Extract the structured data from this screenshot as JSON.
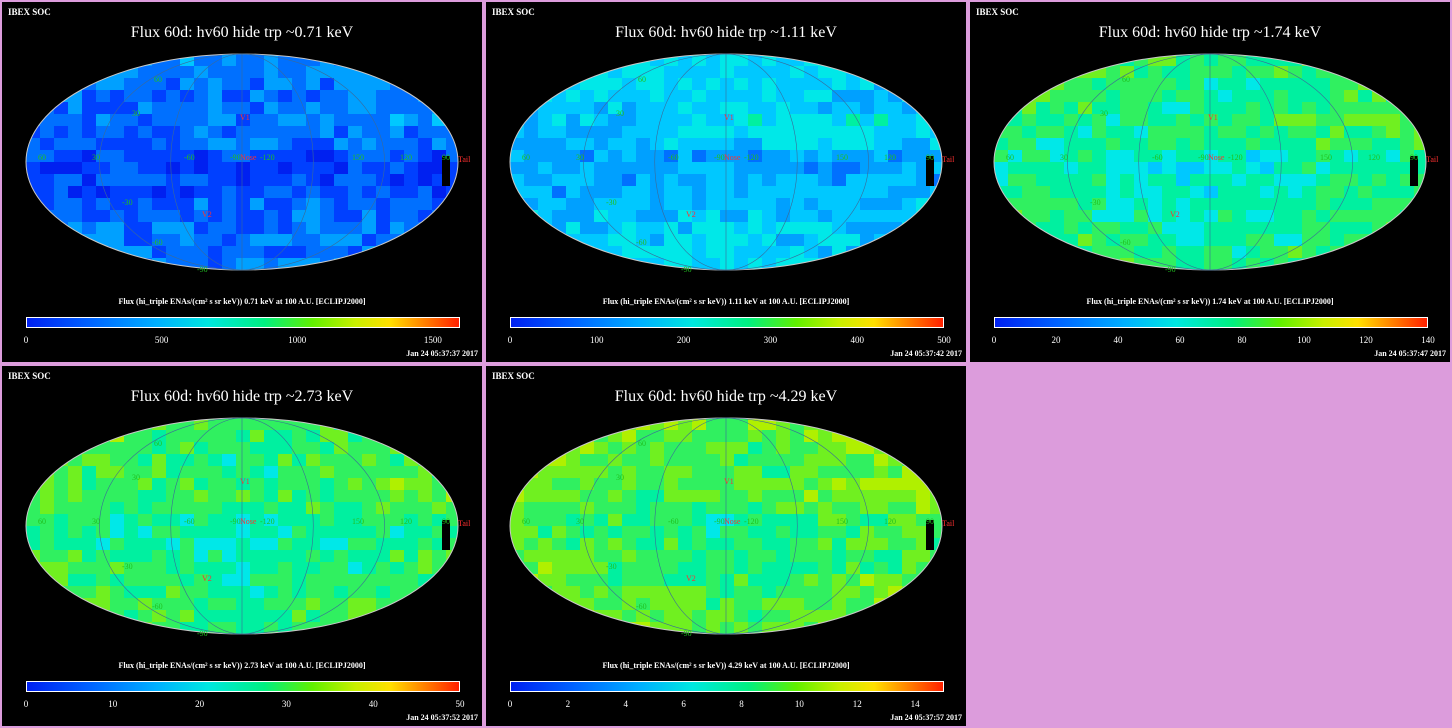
{
  "panels": [
    {
      "org": "IBEX SOC",
      "title": "Flux   60d: hv60 hide trp ~0.71 keV",
      "cb_label": "Flux (hi_triple ENAs/(cm² s sr keV))  0.71 keV at 100 A.U. [ECLIPJ2000]",
      "ticks": [
        "0",
        "500",
        "1000",
        "1500"
      ],
      "timestamp": "Jan 24 05:37:37 2017",
      "level": 0.12
    },
    {
      "org": "IBEX SOC",
      "title": "Flux   60d: hv60 hide trp ~1.11 keV",
      "cb_label": "Flux (hi_triple ENAs/(cm² s sr keV))  1.11 keV at 100 A.U. [ECLIPJ2000]",
      "ticks": [
        "0",
        "100",
        "200",
        "300",
        "400",
        "500"
      ],
      "timestamp": "Jan 24 05:37:42 2017",
      "level": 0.28
    },
    {
      "org": "IBEX SOC",
      "title": "Flux   60d: hv60 hide trp ~1.74 keV",
      "cb_label": "Flux (hi_triple ENAs/(cm² s sr keV))  1.74 keV at 100 A.U. [ECLIPJ2000]",
      "ticks": [
        "0",
        "20",
        "40",
        "60",
        "80",
        "100",
        "120",
        "140"
      ],
      "timestamp": "Jan 24 05:37:47 2017",
      "level": 0.42
    },
    {
      "org": "IBEX SOC",
      "title": "Flux   60d: hv60 hide trp ~2.73 keV",
      "cb_label": "Flux (hi_triple ENAs/(cm² s sr keV))  2.73 keV at 100 A.U. [ECLIPJ2000]",
      "ticks": [
        "0",
        "10",
        "20",
        "30",
        "40",
        "50"
      ],
      "timestamp": "Jan 24 05:37:52 2017",
      "level": 0.45
    },
    {
      "org": "IBEX SOC",
      "title": "Flux   60d: hv60 hide trp ~4.29 keV",
      "cb_label": "Flux (hi_triple ENAs/(cm² s sr keV))  4.29 keV at 100 A.U. [ECLIPJ2000]",
      "ticks": [
        "0",
        "2",
        "4",
        "6",
        "8",
        "10",
        "12",
        "14"
      ],
      "timestamp": "Jan 24 05:37:57 2017",
      "level": 0.5
    }
  ],
  "map_labels": {
    "v1": "V1",
    "v2": "V2",
    "nose": "Nose",
    "tail": "Tail",
    "lons": [
      "60",
      "30",
      "-60",
      "-90",
      "-120",
      "150",
      "120",
      "90"
    ],
    "lats": [
      "60",
      "30",
      "-30",
      "-60",
      "-90"
    ]
  },
  "chart_data": [
    {
      "type": "heatmap",
      "title": "Flux   60d: hv60 hide trp ~0.71 keV",
      "colorbar_label": "Flux (hi_triple ENAs/(cm² s sr keV))  0.71 keV at 100 A.U. [ECLIPJ2000]",
      "colorbar_range": [
        0,
        1600
      ],
      "colorbar_ticks": [
        0,
        500,
        1000,
        1500
      ],
      "projection": "Mollweide"
    },
    {
      "type": "heatmap",
      "title": "Flux   60d: hv60 hide trp ~1.11 keV",
      "colorbar_label": "Flux (hi_triple ENAs/(cm² s sr keV))  1.11 keV at 100 A.U. [ECLIPJ2000]",
      "colorbar_range": [
        0,
        500
      ],
      "colorbar_ticks": [
        0,
        100,
        200,
        300,
        400,
        500
      ],
      "projection": "Mollweide"
    },
    {
      "type": "heatmap",
      "title": "Flux   60d: hv60 hide trp ~1.74 keV",
      "colorbar_label": "Flux (hi_triple ENAs/(cm² s sr keV))  1.74 keV at 100 A.U. [ECLIPJ2000]",
      "colorbar_range": [
        0,
        140
      ],
      "colorbar_ticks": [
        0,
        20,
        40,
        60,
        80,
        100,
        120,
        140
      ],
      "projection": "Mollweide"
    },
    {
      "type": "heatmap",
      "title": "Flux   60d: hv60 hide trp ~2.73 keV",
      "colorbar_label": "Flux (hi_triple ENAs/(cm² s sr keV))  2.73 keV at 100 A.U. [ECLIPJ2000]",
      "colorbar_range": [
        0,
        50
      ],
      "colorbar_ticks": [
        0,
        10,
        20,
        30,
        40,
        50
      ],
      "projection": "Mollweide"
    },
    {
      "type": "heatmap",
      "title": "Flux   60d: hv60 hide trp ~4.29 keV",
      "colorbar_label": "Flux (hi_triple ENAs/(cm² s sr keV))  4.29 keV at 100 A.U. [ECLIPJ2000]",
      "colorbar_range": [
        0,
        15
      ],
      "colorbar_ticks": [
        0,
        2,
        4,
        6,
        8,
        10,
        12,
        14
      ],
      "projection": "Mollweide"
    }
  ],
  "colors": {
    "background": "#dc9cdc",
    "panel": "#000000",
    "label_red": "#ff3030",
    "label_green": "#20c020"
  }
}
